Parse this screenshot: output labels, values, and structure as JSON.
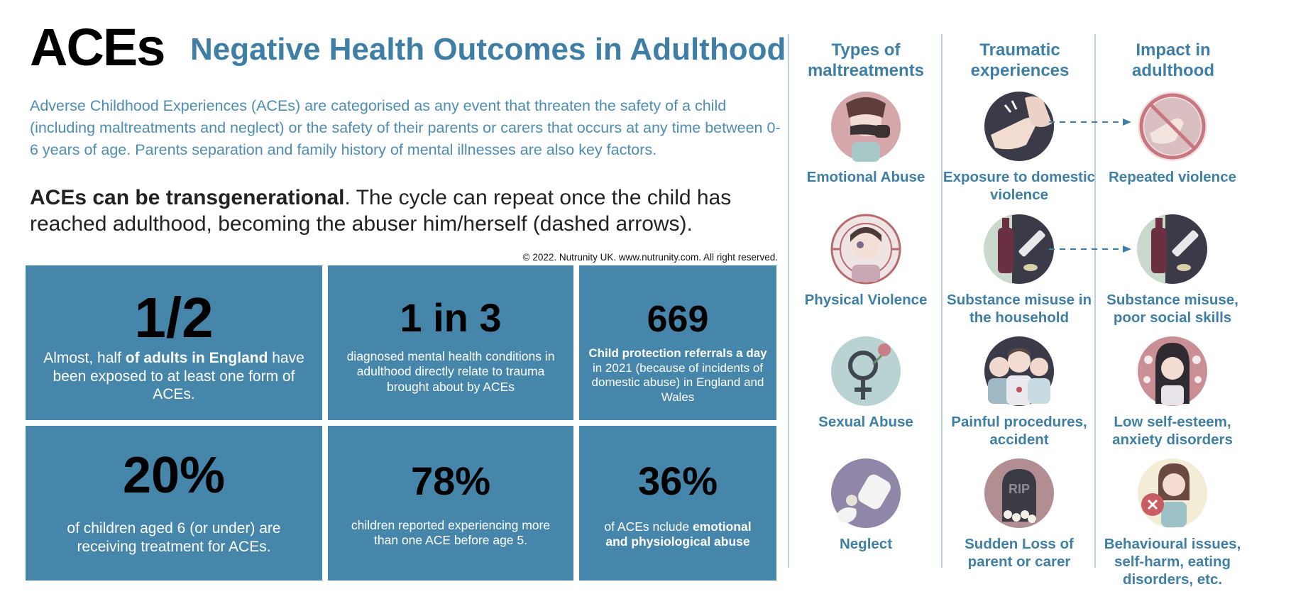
{
  "header": {
    "logo": "ACEs",
    "title": "Negative Health Outcomes in Adulthood",
    "intro": "Adverse Childhood Experiences (ACEs) are categorised as any event that threaten the safety of a child (including maltreatments and neglect) or the safety of their parents or carers that occurs at any time between 0-6 years of age. Parents separation and family history of mental illnesses are also key factors.",
    "transgenerational_bold": "ACEs can be transgenerational",
    "transgenerational_rest": ". The cycle can repeat once the child has reached adulthood, becoming the abuser him/herself (dashed arrows).",
    "copyright": "© 2022. Nutrunity UK. www.nutrunity.com. All right reserved."
  },
  "stats": [
    {
      "number": "1/2",
      "pre": "Almost, half ",
      "bold": "of adults in England",
      "post": " have been exposed to at least one form of ACEs."
    },
    {
      "number": "1 in 3",
      "pre": "diagnosed mental health conditions in adulthood directly relate to trauma brought about by ACEs",
      "bold": "",
      "post": ""
    },
    {
      "number": "669",
      "pre": "",
      "bold": "Child protection referrals a day",
      "post": " in 2021 (because of incidents of domestic abuse) in England and Wales"
    },
    {
      "number": "20%",
      "pre": "of children aged 6 (or under) are receiving treatment for ACEs.",
      "bold": "",
      "post": ""
    },
    {
      "number": "78%",
      "pre": "children reported experiencing more than one ACE before age 5.",
      "bold": "",
      "post": ""
    },
    {
      "number": "36%",
      "pre": "of ACEs nclude ",
      "bold": "emotional and physiological abuse",
      "post": ""
    }
  ],
  "columns": {
    "headers": [
      "Types of maltreatments",
      "Traumatic experiences",
      "Impact in adulthood"
    ],
    "maltreatments": [
      {
        "label": "Emotional Abuse",
        "icon": "covered-mouth-icon"
      },
      {
        "label": "Physical Violence",
        "icon": "bruised-child-icon"
      },
      {
        "label": "Sexual Abuse",
        "icon": "gender-symbol-icon"
      },
      {
        "label": "Neglect",
        "icon": "baby-bottle-icon"
      }
    ],
    "traumatic": [
      {
        "label": "Exposure to domestic violence",
        "icon": "slap-hand-icon"
      },
      {
        "label": "Substance misuse in the household",
        "icon": "bottle-syringe-icon"
      },
      {
        "label": "Painful procedures, accident",
        "icon": "medical-staff-icon"
      },
      {
        "label": "Sudden Loss of parent or carer",
        "icon": "rip-gravestone-icon"
      }
    ],
    "impact": [
      {
        "label": "Repeated violence",
        "icon": "no-violence-icon"
      },
      {
        "label": "Substance misuse, poor social skills",
        "icon": "bottle-syringe-icon"
      },
      {
        "label": "Low self-esteem, anxiety disorders",
        "icon": "anxious-woman-icon"
      },
      {
        "label": "Behavioural issues, self-harm, eating disorders, etc.",
        "icon": "distressed-girl-icon"
      }
    ]
  },
  "colors": {
    "accent": "#3f7fa6",
    "tile": "#4686aa",
    "text": "#222222"
  }
}
